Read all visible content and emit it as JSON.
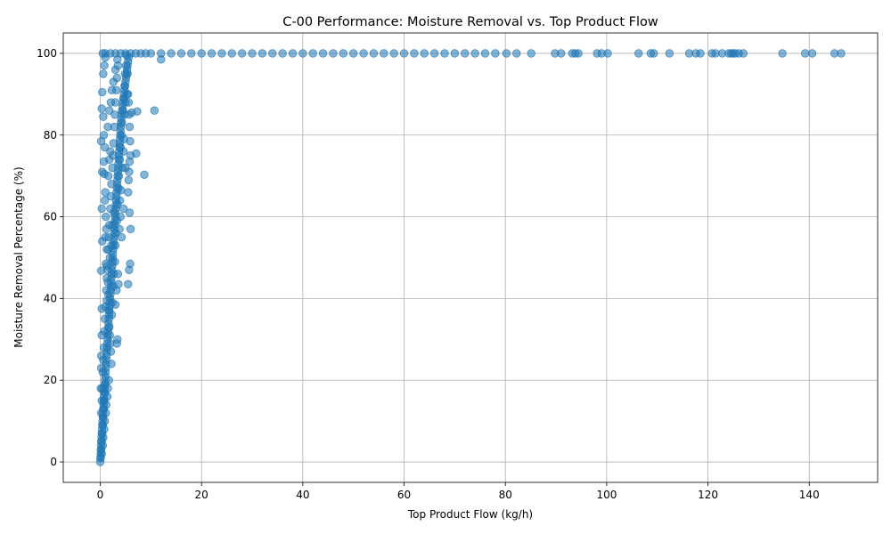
{
  "chart_data": {
    "type": "scatter",
    "title": "C-00 Performance: Moisture Removal vs. Top Product Flow",
    "xlabel": "Top Product Flow (kg/h)",
    "ylabel": "Moisture Removal Percentage (%)",
    "xlim": [
      -7.3,
      153.5
    ],
    "ylim": [
      -5,
      105
    ],
    "xticks": [
      0,
      20,
      40,
      60,
      80,
      100,
      120,
      140
    ],
    "yticks": [
      0,
      20,
      40,
      60,
      80,
      100
    ],
    "grid": true,
    "marker_color": "#1f77b4",
    "marker_alpha": 0.55,
    "series": [
      {
        "points": [
          [
            0,
            0
          ],
          [
            0.05,
            1
          ],
          [
            0.1,
            2
          ],
          [
            0.12,
            3
          ],
          [
            0.15,
            4
          ],
          [
            0.2,
            5
          ],
          [
            0.25,
            6
          ],
          [
            0.3,
            7
          ],
          [
            0.35,
            8
          ],
          [
            0.4,
            9
          ],
          [
            0.45,
            10
          ],
          [
            0.5,
            11
          ],
          [
            0.55,
            12
          ],
          [
            0.6,
            13
          ],
          [
            0.65,
            14
          ],
          [
            0.7,
            15
          ],
          [
            0.75,
            16
          ],
          [
            0.8,
            17
          ],
          [
            0.85,
            18
          ],
          [
            0.9,
            19
          ],
          [
            0.95,
            20
          ],
          [
            1.0,
            21
          ],
          [
            1.05,
            22
          ],
          [
            1.1,
            23
          ],
          [
            1.15,
            24
          ],
          [
            1.2,
            25
          ],
          [
            1.25,
            26
          ],
          [
            1.3,
            27
          ],
          [
            1.35,
            28
          ],
          [
            1.4,
            29
          ],
          [
            1.45,
            30
          ],
          [
            1.5,
            31
          ],
          [
            1.55,
            32
          ],
          [
            1.6,
            33
          ],
          [
            1.65,
            34
          ],
          [
            1.7,
            35
          ],
          [
            1.75,
            36
          ],
          [
            1.8,
            37
          ],
          [
            1.85,
            38
          ],
          [
            1.9,
            39
          ],
          [
            1.95,
            40
          ],
          [
            2.0,
            41
          ],
          [
            2.05,
            42
          ],
          [
            2.1,
            43
          ],
          [
            2.15,
            44
          ],
          [
            2.2,
            45
          ],
          [
            2.25,
            46
          ],
          [
            2.3,
            47
          ],
          [
            2.35,
            48
          ],
          [
            2.4,
            49
          ],
          [
            2.45,
            50
          ],
          [
            2.5,
            51
          ],
          [
            2.55,
            52
          ],
          [
            2.6,
            53
          ],
          [
            2.65,
            54
          ],
          [
            2.7,
            55
          ],
          [
            2.75,
            56
          ],
          [
            2.8,
            57
          ],
          [
            2.85,
            58
          ],
          [
            2.9,
            59
          ],
          [
            2.95,
            60
          ],
          [
            3.0,
            61
          ],
          [
            3.05,
            62
          ],
          [
            3.1,
            63
          ],
          [
            3.15,
            64
          ],
          [
            3.2,
            65
          ],
          [
            3.25,
            66
          ],
          [
            3.3,
            67
          ],
          [
            3.35,
            68
          ],
          [
            3.4,
            69
          ],
          [
            3.45,
            70
          ],
          [
            3.5,
            71
          ],
          [
            3.55,
            72
          ],
          [
            3.6,
            73
          ],
          [
            3.65,
            74
          ],
          [
            3.7,
            75
          ],
          [
            3.75,
            76
          ],
          [
            3.8,
            77
          ],
          [
            3.85,
            78
          ],
          [
            3.9,
            79
          ],
          [
            3.95,
            80
          ],
          [
            4.0,
            81
          ],
          [
            4.05,
            82
          ],
          [
            4.1,
            83
          ],
          [
            4.15,
            84
          ],
          [
            4.2,
            85
          ],
          [
            4.3,
            86
          ],
          [
            4.4,
            87
          ],
          [
            4.5,
            88
          ],
          [
            4.6,
            89
          ],
          [
            4.7,
            90
          ],
          [
            4.8,
            91
          ],
          [
            4.9,
            92
          ],
          [
            5.0,
            93
          ],
          [
            5.1,
            94
          ],
          [
            5.2,
            95
          ],
          [
            5.3,
            96
          ],
          [
            5.4,
            97
          ],
          [
            5.5,
            98
          ],
          [
            5.6,
            99
          ],
          [
            0.1,
            1
          ],
          [
            0.2,
            3
          ],
          [
            0.3,
            5
          ],
          [
            0.4,
            7
          ],
          [
            0.5,
            9
          ],
          [
            0.6,
            11
          ],
          [
            0.7,
            13
          ],
          [
            0.8,
            15
          ],
          [
            0.9,
            17
          ],
          [
            1.0,
            19
          ],
          [
            0.3,
            2
          ],
          [
            0.5,
            4
          ],
          [
            0.6,
            6
          ],
          [
            0.8,
            8
          ],
          [
            0.9,
            10
          ],
          [
            1.1,
            12
          ],
          [
            1.2,
            14
          ],
          [
            1.4,
            16
          ],
          [
            1.5,
            18
          ],
          [
            1.7,
            20
          ],
          [
            0.2,
            12
          ],
          [
            0.3,
            15
          ],
          [
            0.4,
            18
          ],
          [
            0.5,
            22
          ],
          [
            0.6,
            25
          ],
          [
            0.7,
            28
          ],
          [
            0.8,
            32
          ],
          [
            0.9,
            35
          ],
          [
            1.0,
            38
          ],
          [
            1.2,
            42
          ],
          [
            1.3,
            45
          ],
          [
            1.4,
            48
          ],
          [
            1.6,
            52
          ],
          [
            1.7,
            55
          ],
          [
            1.8,
            58
          ],
          [
            2.0,
            62
          ],
          [
            2.1,
            65
          ],
          [
            2.2,
            68
          ],
          [
            2.4,
            72
          ],
          [
            2.5,
            75
          ],
          [
            2.6,
            78
          ],
          [
            2.8,
            82
          ],
          [
            2.9,
            85
          ],
          [
            3.0,
            88
          ],
          [
            3.2,
            91
          ],
          [
            3.3,
            94
          ],
          [
            3.5,
            97
          ],
          [
            0.1,
            18
          ],
          [
            0.2,
            23
          ],
          [
            0.2,
            26
          ],
          [
            0.3,
            31
          ],
          [
            0.3,
            37.5
          ],
          [
            0.2,
            46.8
          ],
          [
            0.4,
            54
          ],
          [
            0.3,
            62
          ],
          [
            0.4,
            71
          ],
          [
            0.2,
            78.5
          ],
          [
            0.3,
            86.5
          ],
          [
            0.4,
            90.5
          ],
          [
            0.6,
            95
          ],
          [
            0.8,
            97
          ],
          [
            1.0,
            99
          ],
          [
            0.6,
            84.5
          ],
          [
            0.7,
            80
          ],
          [
            0.9,
            77
          ],
          [
            0.7,
            73.5
          ],
          [
            0.8,
            70.5
          ],
          [
            1.0,
            66
          ],
          [
            0.9,
            64
          ],
          [
            1.1,
            60
          ],
          [
            1.2,
            57
          ],
          [
            1.0,
            55
          ],
          [
            1.3,
            52
          ],
          [
            1.1,
            48.5
          ],
          [
            1.4,
            47
          ],
          [
            1.5,
            44
          ],
          [
            1.6,
            41
          ],
          [
            1.3,
            39.5
          ],
          [
            1.7,
            37
          ],
          [
            1.8,
            33
          ],
          [
            1.9,
            31
          ],
          [
            2.0,
            29
          ],
          [
            2.1,
            27
          ],
          [
            2.2,
            24
          ],
          [
            2.3,
            36
          ],
          [
            2.4,
            39
          ],
          [
            2.6,
            43
          ],
          [
            2.7,
            46
          ],
          [
            2.9,
            49
          ],
          [
            3.0,
            53
          ],
          [
            3.1,
            56
          ],
          [
            3.3,
            59
          ],
          [
            3.4,
            63
          ],
          [
            3.6,
            67
          ],
          [
            3.7,
            70
          ],
          [
            3.9,
            74
          ],
          [
            4.0,
            77
          ],
          [
            4.2,
            80
          ],
          [
            4.3,
            83
          ],
          [
            4.5,
            86
          ],
          [
            4.6,
            89
          ],
          [
            4.8,
            92
          ],
          [
            4.9,
            95
          ],
          [
            5.1,
            97
          ],
          [
            5.2,
            99.5
          ],
          [
            5.4,
            95
          ],
          [
            5.5,
            90
          ],
          [
            5.6,
            88
          ],
          [
            5.7,
            85
          ],
          [
            5.8,
            82
          ],
          [
            5.9,
            78.5
          ],
          [
            6.0,
            75
          ],
          [
            5.8,
            73.5
          ],
          [
            5.7,
            71
          ],
          [
            5.6,
            69
          ],
          [
            5.5,
            66
          ],
          [
            5.8,
            61
          ],
          [
            6.0,
            57
          ],
          [
            5.9,
            48.5
          ],
          [
            5.7,
            47
          ],
          [
            5.5,
            43.5
          ],
          [
            3.5,
            46
          ],
          [
            3.6,
            43.5
          ],
          [
            3.2,
            42
          ],
          [
            3.0,
            38.5
          ],
          [
            3.4,
            30
          ],
          [
            3.3,
            29
          ],
          [
            3.8,
            57
          ],
          [
            4.0,
            60
          ],
          [
            3.9,
            64
          ],
          [
            4.1,
            66.5
          ],
          [
            4.4,
            72
          ],
          [
            4.6,
            76
          ],
          [
            4.7,
            79
          ],
          [
            4.8,
            85
          ],
          [
            5.0,
            88
          ],
          [
            5.3,
            90
          ],
          [
            6.2,
            85.5
          ],
          [
            7.1,
            75.5
          ],
          [
            7.3,
            85.8
          ],
          [
            8.7,
            70.3
          ],
          [
            10.7,
            86
          ],
          [
            12.0,
            98.5
          ],
          [
            5.0,
            72
          ],
          [
            4.2,
            55
          ],
          [
            4.6,
            62
          ],
          [
            2.2,
            53
          ],
          [
            2.4,
            58
          ],
          [
            2.7,
            61
          ],
          [
            1.9,
            50
          ],
          [
            1.6,
            70
          ],
          [
            1.8,
            74
          ],
          [
            2.0,
            76
          ],
          [
            1.5,
            82
          ],
          [
            1.8,
            86
          ],
          [
            2.1,
            88
          ],
          [
            2.3,
            91
          ],
          [
            2.6,
            93
          ],
          [
            3.0,
            96
          ],
          [
            3.4,
            98.5
          ],
          [
            0.5,
            100
          ],
          [
            1,
            100
          ],
          [
            2,
            100
          ],
          [
            3,
            100
          ],
          [
            4,
            100
          ],
          [
            5,
            100
          ],
          [
            6,
            100
          ],
          [
            7,
            100
          ],
          [
            8,
            100
          ],
          [
            9,
            100
          ],
          [
            10,
            100
          ],
          [
            12,
            100
          ],
          [
            14,
            100
          ],
          [
            16,
            100
          ],
          [
            18,
            100
          ],
          [
            20,
            100
          ],
          [
            22,
            100
          ],
          [
            24,
            100
          ],
          [
            26,
            100
          ],
          [
            28,
            100
          ],
          [
            30,
            100
          ],
          [
            32,
            100
          ],
          [
            34,
            100
          ],
          [
            36,
            100
          ],
          [
            38,
            100
          ],
          [
            40,
            100
          ],
          [
            42,
            100
          ],
          [
            44,
            100
          ],
          [
            46,
            100
          ],
          [
            48,
            100
          ],
          [
            50,
            100
          ],
          [
            52,
            100
          ],
          [
            54,
            100
          ],
          [
            56,
            100
          ],
          [
            58,
            100
          ],
          [
            60,
            100
          ],
          [
            62,
            100
          ],
          [
            64,
            100
          ],
          [
            66,
            100
          ],
          [
            68,
            100
          ],
          [
            70,
            100
          ],
          [
            72,
            100
          ],
          [
            74,
            100
          ],
          [
            76,
            100
          ],
          [
            78,
            100
          ],
          [
            80.2,
            100
          ],
          [
            82.2,
            100
          ],
          [
            85.1,
            100
          ],
          [
            89.8,
            100
          ],
          [
            91.0,
            100
          ],
          [
            93.2,
            100
          ],
          [
            93.8,
            100
          ],
          [
            94.4,
            100
          ],
          [
            98.1,
            100
          ],
          [
            99.0,
            100
          ],
          [
            100.2,
            100
          ],
          [
            106.3,
            100
          ],
          [
            108.7,
            100
          ],
          [
            109.3,
            100
          ],
          [
            112.4,
            100
          ],
          [
            116.3,
            100
          ],
          [
            117.6,
            100
          ],
          [
            118.5,
            100
          ],
          [
            120.8,
            100
          ],
          [
            121.5,
            100
          ],
          [
            122.8,
            100
          ],
          [
            124.1,
            100
          ],
          [
            124.6,
            100
          ],
          [
            125.0,
            100
          ],
          [
            125.4,
            100
          ],
          [
            126.1,
            100
          ],
          [
            127.0,
            100
          ],
          [
            134.7,
            100
          ],
          [
            139.2,
            100
          ],
          [
            140.6,
            100
          ],
          [
            145.0,
            100
          ],
          [
            146.3,
            100
          ]
        ]
      }
    ]
  }
}
